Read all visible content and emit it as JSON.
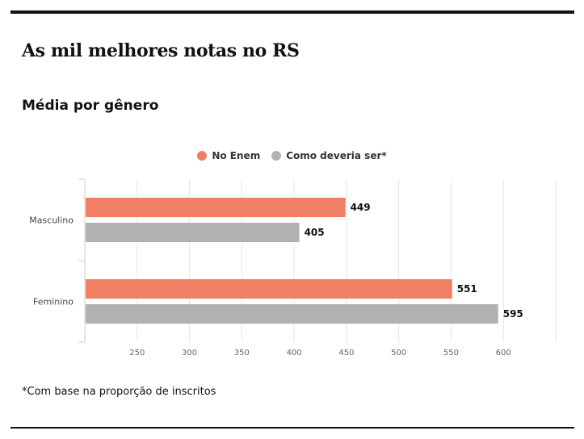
{
  "page": {
    "title": "As mil melhores notas no RS",
    "subtitle": "Média por gênero",
    "footnote": "*Com base na proporção de inscritos"
  },
  "colors": {
    "series_enem": "#f07f63",
    "series_deveria": "#b1b1b1"
  },
  "chart_data": {
    "type": "bar",
    "orientation": "horizontal",
    "title": "Média por gênero",
    "categories": [
      "Masculino",
      "Feminino"
    ],
    "series": [
      {
        "name": "No Enem",
        "values": [
          449,
          551
        ]
      },
      {
        "name": "Como deveria ser*",
        "values": [
          405,
          595
        ]
      }
    ],
    "xlim": [
      200,
      650
    ],
    "xticks": [
      "250",
      "300",
      "350",
      "400",
      "450",
      "500",
      "550",
      "600"
    ],
    "grid": true,
    "legend": "top-center",
    "xlabel": "",
    "ylabel": ""
  }
}
